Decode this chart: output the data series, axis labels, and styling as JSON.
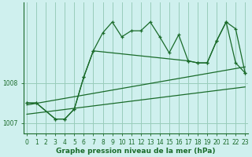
{
  "xlabel": "Graphe pression niveau de la mer (hPa)",
  "background_color": "#cff0ee",
  "grid_color": "#99ccbb",
  "line_color": "#1a6b2a",
  "series": {
    "line_main": {
      "x": [
        0,
        1,
        3,
        4,
        5,
        6,
        7,
        8,
        9,
        10,
        11,
        12,
        13,
        14,
        15,
        16,
        17,
        18,
        19,
        20,
        21,
        22,
        23
      ],
      "y": [
        1007.5,
        1007.5,
        1007.1,
        1007.1,
        1007.35,
        1008.15,
        1008.8,
        1009.25,
        1009.52,
        1009.15,
        1009.3,
        1009.3,
        1009.52,
        1009.15,
        1008.75,
        1009.2,
        1008.55,
        1008.5,
        1008.5,
        1009.05,
        1009.52,
        1008.5,
        1008.25
      ]
    },
    "line_upper": {
      "x": [
        0,
        1,
        3,
        4,
        5,
        6,
        7,
        17,
        18,
        19,
        20,
        21,
        22,
        23
      ],
      "y": [
        1007.5,
        1007.5,
        1007.1,
        1007.1,
        1007.35,
        1008.15,
        1008.8,
        1008.55,
        1008.5,
        1008.5,
        1009.05,
        1009.52,
        1009.35,
        1008.25
      ]
    },
    "line_trend_upper": {
      "x": [
        0,
        23
      ],
      "y": [
        1007.45,
        1008.4
      ]
    },
    "line_trend_lower": {
      "x": [
        0,
        23
      ],
      "y": [
        1007.22,
        1007.9
      ]
    }
  },
  "ylim": [
    1006.75,
    1010.0
  ],
  "yticks": [
    1007,
    1008
  ],
  "xticks": [
    0,
    1,
    2,
    3,
    4,
    5,
    6,
    7,
    8,
    9,
    10,
    11,
    12,
    13,
    14,
    15,
    16,
    17,
    18,
    19,
    20,
    21,
    22,
    23
  ],
  "tick_fontsize": 5.5,
  "label_fontsize": 6.5
}
